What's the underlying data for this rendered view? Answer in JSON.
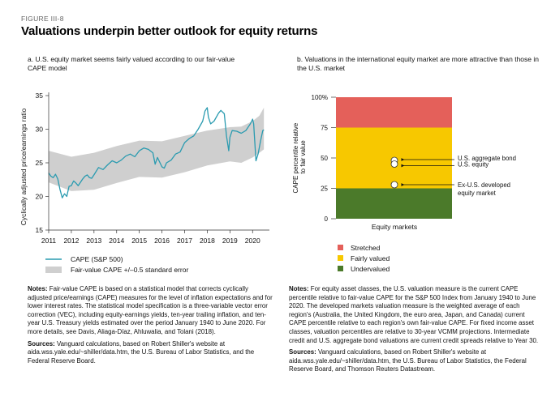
{
  "figure_label": "FIGURE III-8",
  "title": "Valuations underpin better outlook for equity returns",
  "panel_a": {
    "subtitle": "a. U.S. equity market seems fairly valued according to our fair-value CAPE model",
    "legend": {
      "line_label": "CAPE (S&P 500)",
      "band_label": "Fair-value CAPE +/–0.5 standard error"
    },
    "notes_heading": "Notes:",
    "notes_text": "Fair-value CAPE is based on a statistical model that corrects cyclically adjusted price/earnings (CAPE) measures for the level of inflation expectations and for lower interest rates. The statistical model specification is a three-variable vector error correction (VEC), including equity-earnings yields, ten-year trailing inflation, and ten-year U.S. Treasury yields estimated over the period January 1940 to June 2020. For more details, see Davis, Aliaga-Díaz, Ahluwalia, and Tolani (2018).",
    "sources_heading": "Sources:",
    "sources_text": "Vanguard calculations, based on Robert Shiller's website at aida.wss.yale.edu/~shiller/data.htm, the U.S. Bureau of Labor Statistics, and the Federal Reserve Board."
  },
  "panel_b": {
    "subtitle": "b. Valuations in the international equity market are more attractive than those in the U.S. market",
    "legend": {
      "stretched": "Stretched",
      "fairly": "Fairly valued",
      "under": "Undervalued"
    },
    "notes_heading": "Notes:",
    "notes_text": "For equity asset classes, the U.S. valuation measure is the current CAPE percentile relative to fair-value CAPE for the S&P 500 Index from January 1940 to June 2020. The developed markets valuation measure is the weighted average of each region's (Australia, the United Kingdom, the euro area, Japan, and Canada) current CAPE percentile relative to each region's own fair-value CAPE. For fixed income asset classes, valuation percentiles are relative to 30-year VCMM projections. Intermediate credit and U.S. aggregate bond valuations are current credit spreads relative to Year 30.",
    "sources_heading": "Sources:",
    "sources_text": "Vanguard calculations, based on Robert Shiller's website at aida.wss.yale.edu/~shiller/data.htm, the U.S. Bureau of Labor Statistics, the Federal Reserve Board, and Thomson Reuters Datastream."
  },
  "colors": {
    "cape_line": "#2a9bb0",
    "band": "#cfcfcf",
    "stretched": "#e4605a",
    "fairly": "#f7c800",
    "under": "#4b7a2a",
    "marker": "#ffffff"
  },
  "chart_data": [
    {
      "type": "line",
      "ylabel": "Cyclically adjusted price/earnings ratio",
      "xlabel": "",
      "ylim": [
        15,
        35
      ],
      "xlim": [
        2011,
        2020.6
      ],
      "x_ticks": [
        "2011",
        "2012",
        "2013",
        "2014",
        "2015",
        "2016",
        "2017",
        "2018",
        "2019",
        "2020"
      ],
      "y_ticks": [
        "15",
        "20",
        "25",
        "30",
        "35"
      ],
      "grid": false,
      "series": [
        {
          "name": "CAPE (S&P 500)",
          "x": [
            2011.0,
            2011.1,
            2011.2,
            2011.3,
            2011.4,
            2011.5,
            2011.6,
            2011.7,
            2011.8,
            2011.9,
            2012.0,
            2012.1,
            2012.2,
            2012.3,
            2012.4,
            2012.5,
            2012.6,
            2012.7,
            2012.8,
            2012.9,
            2013.0,
            2013.2,
            2013.4,
            2013.6,
            2013.8,
            2014.0,
            2014.2,
            2014.4,
            2014.6,
            2014.8,
            2015.0,
            2015.2,
            2015.4,
            2015.6,
            2015.7,
            2015.8,
            2016.0,
            2016.1,
            2016.2,
            2016.4,
            2016.6,
            2016.8,
            2017.0,
            2017.2,
            2017.4,
            2017.6,
            2017.8,
            2017.9,
            2018.0,
            2018.05,
            2018.15,
            2018.3,
            2018.5,
            2018.6,
            2018.75,
            2018.85,
            2018.95,
            2019.0,
            2019.1,
            2019.3,
            2019.5,
            2019.7,
            2019.9,
            2020.0,
            2020.05,
            2020.15,
            2020.25,
            2020.35,
            2020.45,
            2020.5
          ],
          "values": [
            23.5,
            23.0,
            22.8,
            23.3,
            22.6,
            21.0,
            19.8,
            20.4,
            20.0,
            21.5,
            21.6,
            22.3,
            22.0,
            21.6,
            22.1,
            22.6,
            23.0,
            23.2,
            22.8,
            22.7,
            23.2,
            24.3,
            24.0,
            24.7,
            25.3,
            25.0,
            25.4,
            26.0,
            26.3,
            25.9,
            26.8,
            27.2,
            27.0,
            26.5,
            24.8,
            25.8,
            24.4,
            24.2,
            25.0,
            25.4,
            26.3,
            26.6,
            28.0,
            28.6,
            29.0,
            30.0,
            31.2,
            32.7,
            33.2,
            31.8,
            30.8,
            31.2,
            32.4,
            32.8,
            32.3,
            29.0,
            26.8,
            28.8,
            29.8,
            29.7,
            29.4,
            29.8,
            30.8,
            31.5,
            30.8,
            25.3,
            26.4,
            28.2,
            29.8,
            29.9
          ]
        },
        {
          "name": "Fair-value CAPE +/–0.5 standard error",
          "x": [
            2011.0,
            2012.0,
            2013.0,
            2014.0,
            2015.0,
            2016.0,
            2017.0,
            2018.0,
            2019.0,
            2019.5,
            2020.0,
            2020.3,
            2020.5
          ],
          "upper": [
            26.8,
            25.9,
            26.5,
            27.5,
            28.3,
            28.2,
            29.0,
            29.8,
            30.3,
            30.4,
            31.2,
            32.0,
            33.2
          ],
          "lower": [
            22.1,
            20.8,
            21.0,
            22.0,
            22.9,
            22.8,
            23.6,
            24.6,
            25.2,
            25.0,
            25.8,
            26.5,
            27.0
          ]
        }
      ]
    },
    {
      "type": "bar",
      "ylabel": "CAPE percentile relative to fair value",
      "xlabel": "Equity markets",
      "ylim": [
        0,
        100
      ],
      "y_ticks": [
        "0",
        "25",
        "50",
        "75",
        "100%"
      ],
      "bands": [
        {
          "name": "Undervalued",
          "from": 0,
          "to": 25
        },
        {
          "name": "Fairly valued",
          "from": 25,
          "to": 75
        },
        {
          "name": "Stretched",
          "from": 75,
          "to": 100
        }
      ],
      "markers": [
        {
          "name": "U.S. aggregate bond",
          "value": 48
        },
        {
          "name": "U.S. equity",
          "value": 45
        },
        {
          "name": "Ex-U.S. developed equity market",
          "value": 28
        }
      ],
      "annotations": [
        "U.S. aggregate bond",
        "U.S. equity",
        "Ex-U.S. developed",
        "equity market"
      ]
    }
  ]
}
